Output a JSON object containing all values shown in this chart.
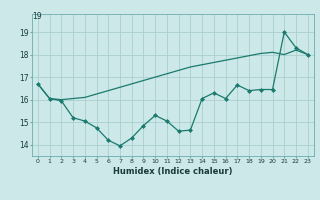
{
  "xlabel": "Humidex (Indice chaleur)",
  "bg_color": "#cce8e8",
  "grid_color": "#aacfcf",
  "line_color": "#1a7a6e",
  "xlim": [
    -0.5,
    23.5
  ],
  "ylim": [
    13.5,
    19.8
  ],
  "yticks": [
    14,
    15,
    16,
    17,
    18,
    19
  ],
  "xticks": [
    0,
    1,
    2,
    3,
    4,
    5,
    6,
    7,
    8,
    9,
    10,
    11,
    12,
    13,
    14,
    15,
    16,
    17,
    18,
    19,
    20,
    21,
    22,
    23
  ],
  "line1_x": [
    0,
    1,
    2,
    3,
    4,
    5,
    6,
    7,
    8,
    9,
    10,
    11,
    12,
    13,
    14,
    15,
    16,
    17,
    18,
    19,
    20,
    21,
    22,
    23
  ],
  "line1_y": [
    16.7,
    16.05,
    16.0,
    16.05,
    16.1,
    16.25,
    16.4,
    16.55,
    16.7,
    16.85,
    17.0,
    17.15,
    17.3,
    17.45,
    17.55,
    17.65,
    17.75,
    17.85,
    17.95,
    18.05,
    18.1,
    18.0,
    18.2,
    18.0
  ],
  "line2_x": [
    0,
    1,
    2,
    3,
    4,
    5,
    6,
    7,
    8,
    9,
    10,
    11,
    12,
    13,
    14,
    15,
    16,
    17,
    18,
    19,
    20,
    21,
    22,
    23
  ],
  "line2_y": [
    16.7,
    16.05,
    15.95,
    15.2,
    15.05,
    14.75,
    14.2,
    13.95,
    14.3,
    14.85,
    15.3,
    15.05,
    14.6,
    14.65,
    16.05,
    16.3,
    16.05,
    16.65,
    16.4,
    16.45,
    16.45,
    19.0,
    18.3,
    18.0
  ]
}
